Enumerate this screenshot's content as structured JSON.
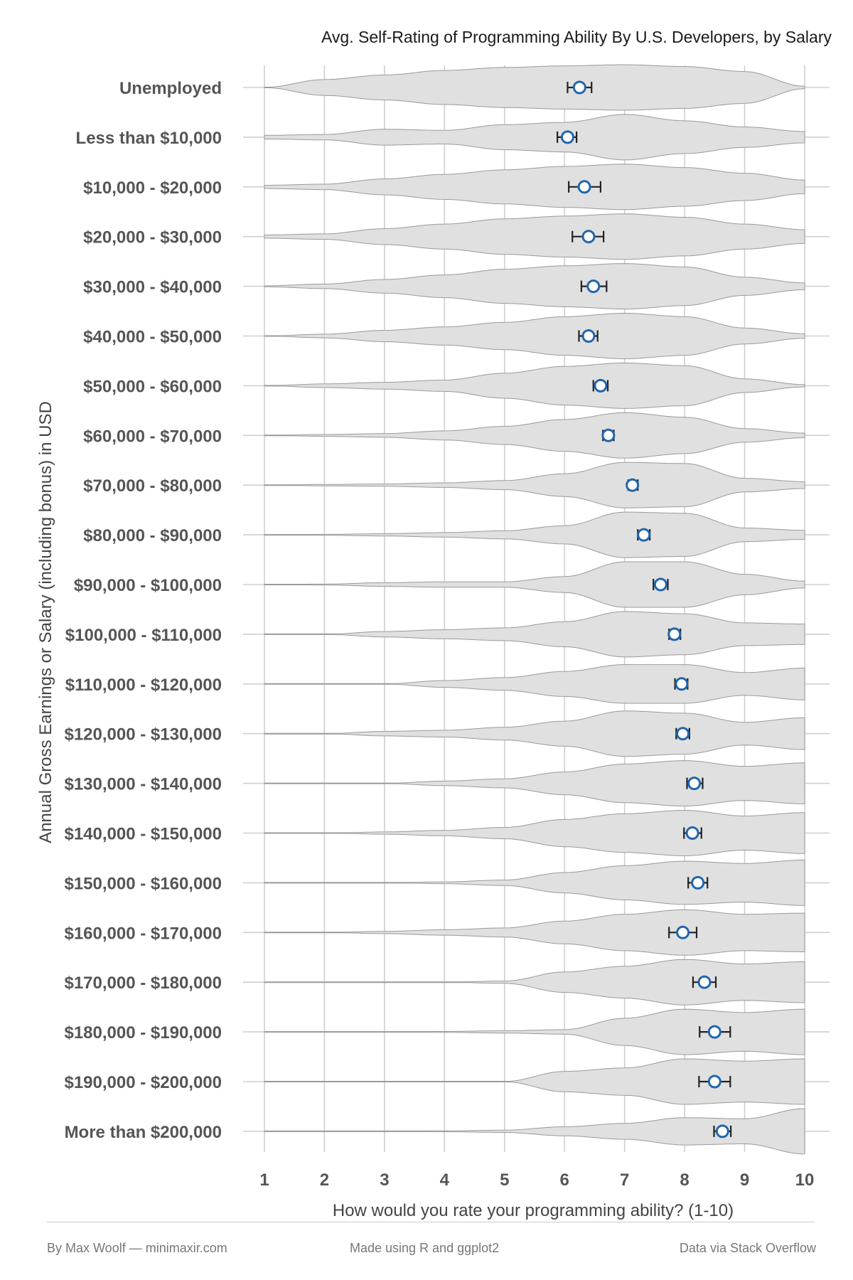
{
  "chart_data": {
    "type": "violin",
    "title": "Avg. Self-Rating of Programming Ability By U.S. Developers, by Salary",
    "xlabel": "How would you rate your programming ability? (1-10)",
    "ylabel": "Annual Gross Earnings or Salary (including bonus) in USD",
    "xlim": [
      1,
      10
    ],
    "x_ticks": [
      "1",
      "2",
      "3",
      "4",
      "5",
      "6",
      "7",
      "8",
      "9",
      "10"
    ],
    "grid": true,
    "categories": [
      "Unemployed",
      "Less than $10,000",
      "$10,000 - $20,000",
      "$20,000 - $30,000",
      "$30,000 - $40,000",
      "$40,000 - $50,000",
      "$50,000 - $60,000",
      "$60,000 - $70,000",
      "$70,000 - $80,000",
      "$80,000 - $90,000",
      "$90,000 - $100,000",
      "$100,000 - $110,000",
      "$110,000 - $120,000",
      "$120,000 - $130,000",
      "$130,000 - $140,000",
      "$140,000 - $150,000",
      "$150,000 - $160,000",
      "$160,000 - $170,000",
      "$170,000 - $180,000",
      "$180,000 - $190,000",
      "$190,000 - $200,000",
      "More than $200,000"
    ],
    "means": [
      6.25,
      6.05,
      6.33,
      6.4,
      6.48,
      6.4,
      6.6,
      6.73,
      7.13,
      7.32,
      7.6,
      7.83,
      7.95,
      7.97,
      8.16,
      8.13,
      8.22,
      7.97,
      8.33,
      8.5,
      8.5,
      8.63
    ],
    "ci_low": [
      6.05,
      5.88,
      6.07,
      6.13,
      6.28,
      6.24,
      6.48,
      6.64,
      7.06,
      7.22,
      7.48,
      7.74,
      7.84,
      7.86,
      8.04,
      7.99,
      8.06,
      7.74,
      8.14,
      8.25,
      8.24,
      8.49
    ],
    "ci_high": [
      6.45,
      6.2,
      6.6,
      6.65,
      6.7,
      6.55,
      6.72,
      6.82,
      7.22,
      7.42,
      7.72,
      7.93,
      8.05,
      8.08,
      8.3,
      8.28,
      8.38,
      8.2,
      8.52,
      8.76,
      8.76,
      8.77
    ],
    "density_x": [
      1,
      2,
      3,
      4,
      5,
      6,
      7,
      8,
      9,
      10
    ],
    "density": [
      [
        0.0,
        0.35,
        0.55,
        0.75,
        0.88,
        0.95,
        1.0,
        0.92,
        0.7,
        0.05
      ],
      [
        0.08,
        0.12,
        0.35,
        0.3,
        0.55,
        0.65,
        1.0,
        0.72,
        0.45,
        0.25
      ],
      [
        0.07,
        0.12,
        0.35,
        0.55,
        0.75,
        0.9,
        1.0,
        0.85,
        0.6,
        0.3
      ],
      [
        0.07,
        0.12,
        0.35,
        0.55,
        0.78,
        0.9,
        1.0,
        0.85,
        0.55,
        0.3
      ],
      [
        0.02,
        0.1,
        0.3,
        0.5,
        0.75,
        0.9,
        1.0,
        0.85,
        0.4,
        0.15
      ],
      [
        0.0,
        0.08,
        0.25,
        0.4,
        0.6,
        0.85,
        1.0,
        0.85,
        0.35,
        0.1
      ],
      [
        0.0,
        0.08,
        0.15,
        0.25,
        0.55,
        0.85,
        1.0,
        0.88,
        0.3,
        0.05
      ],
      [
        0.0,
        0.04,
        0.08,
        0.2,
        0.4,
        0.7,
        1.0,
        0.8,
        0.3,
        0.1
      ],
      [
        0.0,
        0.03,
        0.05,
        0.1,
        0.2,
        0.5,
        1.0,
        0.95,
        0.3,
        0.15
      ],
      [
        0.0,
        0.02,
        0.05,
        0.1,
        0.18,
        0.4,
        1.0,
        0.95,
        0.3,
        0.2
      ],
      [
        0.0,
        0.02,
        0.08,
        0.12,
        0.12,
        0.35,
        1.0,
        1.0,
        0.45,
        0.15
      ],
      [
        0.0,
        0.0,
        0.12,
        0.2,
        0.28,
        0.55,
        1.0,
        0.9,
        0.5,
        0.45
      ],
      [
        0.0,
        0.0,
        0.0,
        0.15,
        0.28,
        0.55,
        0.85,
        0.85,
        0.5,
        0.7
      ],
      [
        0.0,
        0.0,
        0.1,
        0.15,
        0.28,
        0.55,
        1.0,
        0.9,
        0.5,
        0.7
      ],
      [
        0.0,
        0.0,
        0.0,
        0.1,
        0.2,
        0.5,
        0.85,
        1.0,
        0.75,
        0.9
      ],
      [
        0.0,
        0.0,
        0.05,
        0.12,
        0.25,
        0.6,
        0.85,
        1.0,
        0.75,
        0.9
      ],
      [
        0.0,
        0.0,
        0.0,
        0.04,
        0.12,
        0.45,
        0.75,
        0.95,
        0.85,
        1.0
      ],
      [
        0.0,
        0.0,
        0.05,
        0.12,
        0.2,
        0.5,
        0.8,
        1.0,
        0.8,
        0.85
      ],
      [
        0.0,
        0.0,
        0.0,
        0.0,
        0.05,
        0.45,
        0.7,
        1.0,
        0.8,
        0.9
      ],
      [
        0.0,
        0.0,
        0.0,
        0.02,
        0.05,
        0.1,
        0.6,
        1.0,
        0.85,
        1.0
      ],
      [
        0.0,
        0.0,
        0.0,
        0.0,
        0.0,
        0.45,
        0.6,
        1.0,
        0.9,
        1.0
      ],
      [
        0.0,
        0.0,
        0.0,
        0.02,
        0.05,
        0.2,
        0.35,
        0.6,
        0.55,
        1.0
      ]
    ],
    "colors": {
      "violin_fill": "#e0e0e0",
      "violin_stroke": "#9a9a9a",
      "mean_marker_stroke": "#2166ac",
      "mean_marker_fill": "#ffffff",
      "errorbar": "#222222",
      "grid": "#cfcfcf"
    }
  },
  "footer": {
    "left": "By Max Woolf — minimaxir.com",
    "center": "Made using R and ggplot2",
    "right": "Data via Stack Overflow"
  }
}
